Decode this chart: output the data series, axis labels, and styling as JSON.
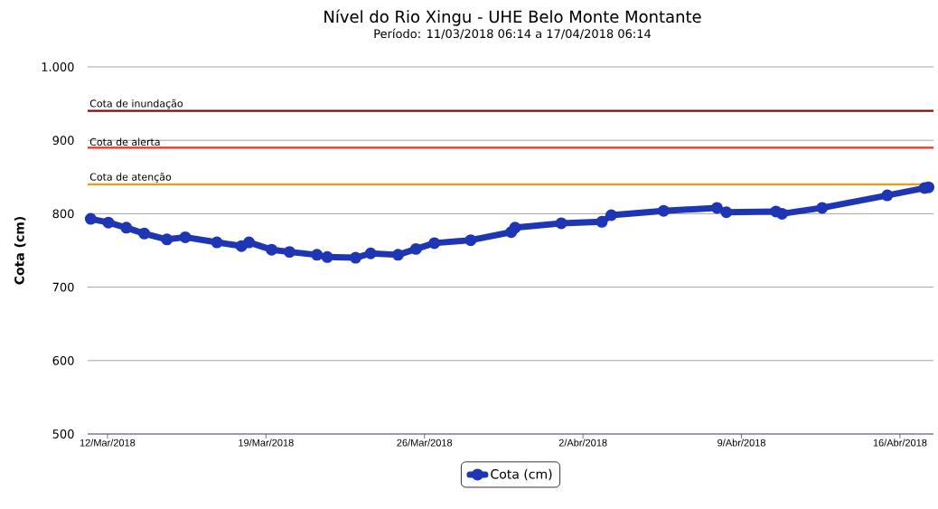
{
  "chart_data": {
    "type": "line",
    "title": "Nível do Rio Xingu - UHE Belo Monte Montante",
    "subtitle": "Período: 11/03/2018 06:14 a 17/04/2018 06:14",
    "ylabel": "Cota (cm)",
    "x": [
      "2018-03-11T06:14",
      "2018-03-12T01:00",
      "2018-03-12T20:00",
      "2018-03-13T15:00",
      "2018-03-14T15:00",
      "2018-03-15T10:30",
      "2018-03-16T20:00",
      "2018-03-17T22:00",
      "2018-03-18T06:00",
      "2018-03-19T06:00",
      "2018-03-20T01:00",
      "2018-03-21T06:00",
      "2018-03-21T17:00",
      "2018-03-22T23:00",
      "2018-03-23T15:00",
      "2018-03-24T20:00",
      "2018-03-25T15:00",
      "2018-03-26T10:30",
      "2018-03-28T01:00",
      "2018-03-29T20:00",
      "2018-03-30T00:00",
      "2018-04-01T01:00",
      "2018-04-02T20:00",
      "2018-04-03T06:00",
      "2018-04-05T13:30",
      "2018-04-07T22:00",
      "2018-04-08T08:00",
      "2018-04-10T12:30",
      "2018-04-10T19:00",
      "2018-04-12T13:30",
      "2018-04-15T10:30",
      "2018-04-17T02:00",
      "2018-04-17T06:14"
    ],
    "series": [
      {
        "name": "Cota (cm)",
        "color": "#1f36b4",
        "values": [
          793,
          788,
          781,
          773,
          765,
          768,
          761,
          756,
          761,
          751,
          748,
          744,
          741,
          740,
          746,
          744,
          752,
          760,
          764,
          775,
          781,
          787,
          789,
          798,
          804,
          808,
          802,
          803,
          800,
          808,
          825,
          835,
          836
        ]
      }
    ],
    "xlim": [
      "2018-03-11T03:00",
      "2018-04-17T11:30"
    ],
    "xticks": [
      {
        "value": "2018-03-12",
        "label": "12/Mar/2018"
      },
      {
        "value": "2018-03-19",
        "label": "19/Mar/2018"
      },
      {
        "value": "2018-03-26",
        "label": "26/Mar/2018"
      },
      {
        "value": "2018-04-02",
        "label": "2/Abr/2018"
      },
      {
        "value": "2018-04-09",
        "label": "9/Abr/2018"
      },
      {
        "value": "2018-04-16",
        "label": "16/Abr/2018"
      }
    ],
    "ylim": [
      500,
      1000
    ],
    "yticks": [
      500,
      600,
      700,
      800,
      900,
      {
        "value": 1000,
        "label": "1.000"
      }
    ],
    "ref_lines": [
      {
        "axis": "y",
        "value": 940,
        "label": "Cota de inundação",
        "color": "#8b0a0a"
      },
      {
        "axis": "y",
        "value": 890,
        "label": "Cota de alerta",
        "color": "#e5341f"
      },
      {
        "axis": "y",
        "value": 840,
        "label": "Cota de atenção",
        "color": "#f29a1e"
      }
    ],
    "grid": "y",
    "legend": "bottom",
    "marker": "circle",
    "line_style": "solid"
  }
}
